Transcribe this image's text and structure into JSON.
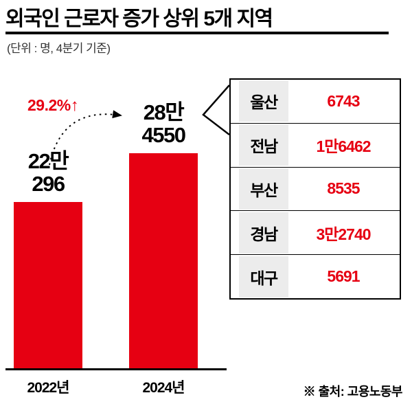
{
  "header": {
    "title": "외국인 근로자 증가 상위 5개 지역",
    "subtitle": "(단위 : 명, 4분기 기준)"
  },
  "chart_data": {
    "type": "bar",
    "title": "외국인 근로자 증가 상위 5개 지역",
    "unit_note": "단위 : 명, 4분기 기준",
    "categories": [
      "2022년",
      "2024년"
    ],
    "values": [
      220296,
      284550
    ],
    "value_labels": [
      {
        "line1": "22만",
        "line2": "296"
      },
      {
        "line1": "28만",
        "line2": "4550"
      }
    ],
    "growth": {
      "label": "29.2%",
      "arrow": "↑"
    },
    "ylim": [
      0,
      300000
    ],
    "bar_color": "#e60012",
    "region_increases": [
      {
        "region": "울산",
        "increase": 6743
      },
      {
        "region": "전남",
        "increase": 16462
      },
      {
        "region": "부산",
        "increase": 8535
      },
      {
        "region": "경남",
        "increase": 32740
      },
      {
        "region": "대구",
        "increase": 5691
      }
    ],
    "legend_position": "none",
    "grid": false
  },
  "table": {
    "rows": [
      {
        "region": "울산",
        "value": "6743"
      },
      {
        "region": "전남",
        "value": "1만6462"
      },
      {
        "region": "부산",
        "value": "8535"
      },
      {
        "region": "경남",
        "value": "3만2740"
      },
      {
        "region": "대구",
        "value": "5691"
      }
    ]
  },
  "footer": {
    "source": "※ 출처: 고용노동부"
  }
}
